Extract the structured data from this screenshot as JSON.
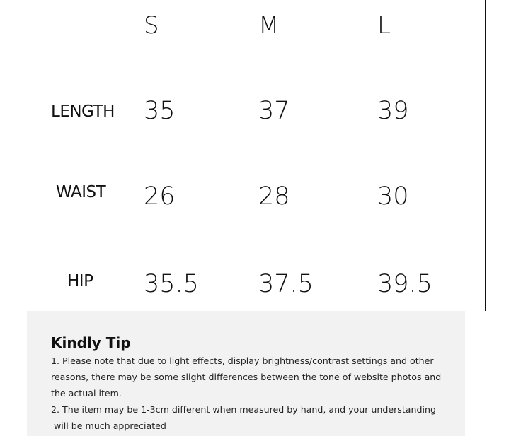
{
  "table": {
    "sizes": [
      "S",
      "M",
      "L"
    ],
    "rows": [
      {
        "label": "LENGTH",
        "values": [
          "35",
          "37",
          "39"
        ]
      },
      {
        "label": "WAIST",
        "values": [
          "26",
          "28",
          "30"
        ]
      },
      {
        "label": "HIP",
        "values": [
          "35.5",
          "37.5",
          "39.5"
        ]
      }
    ]
  },
  "tip": {
    "title": "Kindly Tip",
    "lines": [
      "1.  Please note that due to light effects, display brightness/contrast settings and other",
      "reasons, there may be some slight differences between the tone of website photos and",
      "the actual item.",
      "2. The item may be 1-3cm different when measured by hand, and your understanding",
      " will be much appreciated"
    ]
  }
}
